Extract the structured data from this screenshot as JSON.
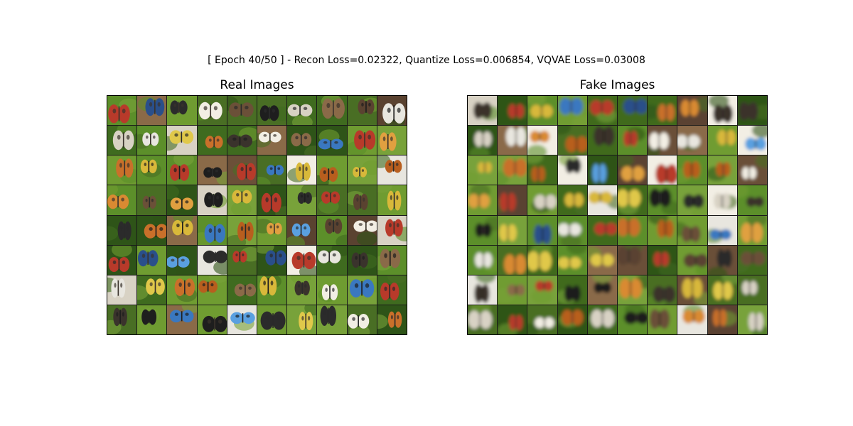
{
  "suptitle": "[ Epoch 40/50 ] - Recon Loss=0.02322, Quantize Loss=0.006854, VQVAE Loss=0.03008",
  "panels": [
    {
      "id": "real",
      "title": "Real Images"
    },
    {
      "id": "fake",
      "title": "Fake Images"
    }
  ],
  "grid": {
    "rows": 8,
    "cols": 10
  },
  "palette": {
    "greens": [
      "#3f6b1f",
      "#5c8f2a",
      "#2e5418",
      "#78a23a",
      "#496e24",
      "#6f9c31"
    ],
    "oranges": [
      "#c9702a",
      "#d98a32",
      "#b85e1e",
      "#e0a040"
    ],
    "blues": [
      "#3a78c0",
      "#5aa0e0",
      "#2a4f8a"
    ],
    "darks": [
      "#1e1e1e",
      "#2b2b2b",
      "#3a332c"
    ],
    "lights": [
      "#e8e6df",
      "#d8d2c4",
      "#f2eee4"
    ],
    "browns": [
      "#6b5038",
      "#8a6a48",
      "#5a4230"
    ],
    "yellows": [
      "#e0c84a",
      "#d8b83a"
    ],
    "reds": [
      "#b83a2a"
    ]
  }
}
